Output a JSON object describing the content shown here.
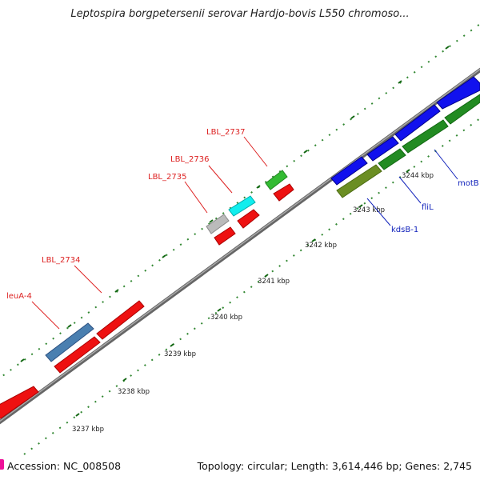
{
  "title": "Leptospira borgpetersenii serovar Hardjo-bovis L550 chromoso...",
  "footer": {
    "accession": "Accession: NC_008508",
    "topology": "Topology: circular; Length: 3,614,446 bp; Genes: 2,745"
  },
  "colors": {
    "backbone": "#888888",
    "label_forward": "#dd2222",
    "label_reverse": "#1122bb",
    "tick": "#338833",
    "accession_marker": "#ee1199"
  },
  "kbp_labels": [
    "3237 kbp",
    "3238 kbp",
    "3239 kbp",
    "3240 kbp",
    "3241 kbp",
    "3242 kbp",
    "3243 kbp",
    "3244 kbp"
  ],
  "forward_genes": [
    {
      "name": "leuA-4",
      "color": "#4a7fb0"
    },
    {
      "name": "LBL_2734",
      "color": "#ee1111"
    },
    {
      "name": "LBL_2735",
      "color": "#bbbbbb"
    },
    {
      "name": "LBL_2736",
      "color": "#11eeee"
    },
    {
      "name": "LBL_2737",
      "color": "#33bb33"
    }
  ],
  "reverse_genes": [
    {
      "name": "kdsB-1",
      "color": "#6b8e23"
    },
    {
      "name": "fliL",
      "color": "#228b22"
    },
    {
      "name": "motB",
      "color": "#1111ee"
    }
  ]
}
